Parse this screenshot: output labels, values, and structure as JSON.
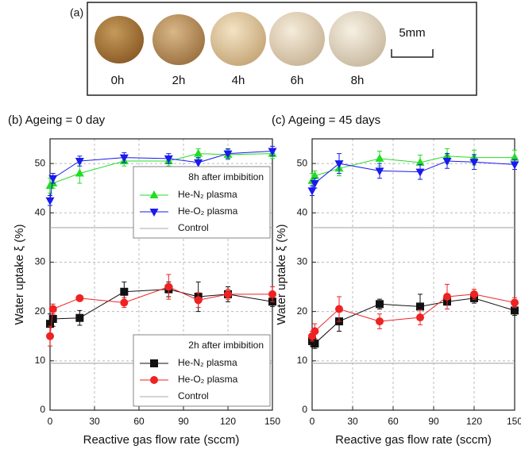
{
  "panel_a": {
    "label": "(a)",
    "times": [
      "0h",
      "2h",
      "4h",
      "6h",
      "8h"
    ],
    "scale_bar": "5mm"
  },
  "chart_data": [
    {
      "type": "line",
      "title": "(b) Ageing = 0 day",
      "xlabel": "Reactive gas flow rate (sccm)",
      "ylabel": "Water uptake ξ (%)",
      "x": [
        0,
        2,
        20,
        50,
        80,
        100,
        120,
        150
      ],
      "xlim": [
        0,
        150
      ],
      "xticks": [
        0,
        30,
        60,
        90,
        120,
        150
      ],
      "ylim": [
        0,
        55
      ],
      "yticks": [
        0,
        10,
        20,
        30,
        40,
        50
      ],
      "grid": true,
      "groups": [
        {
          "legend_title": "8h after imbibition",
          "series": [
            {
              "name": "He-N₂ plasma",
              "color": "#22dd22",
              "marker": "triangle-up",
              "values": [
                45.5,
                46,
                48,
                50.5,
                50.5,
                52,
                51.8,
                52
              ],
              "errors": [
                1.5,
                1,
                2,
                1,
                1,
                1,
                1,
                1
              ]
            },
            {
              "name": "He-O₂ plasma",
              "color": "#1a1aee",
              "marker": "triangle-down",
              "values": [
                42.5,
                47,
                50.5,
                51.2,
                51,
                50.2,
                52,
                52.5
              ],
              "errors": [
                1,
                1,
                1,
                1,
                1,
                1,
                1,
                1
              ]
            }
          ],
          "control": {
            "name": "Control",
            "value": 37,
            "color": "#aaaaaa"
          }
        },
        {
          "legend_title": "2h after imbibition",
          "series": [
            {
              "name": "He-N₂ plasma",
              "color": "#111111",
              "marker": "square",
              "values": [
                17.5,
                18.5,
                18.7,
                24,
                24.5,
                23,
                23.5,
                22
              ],
              "errors": [
                2,
                1.5,
                1.5,
                2,
                1.5,
                3,
                1.5,
                1
              ]
            },
            {
              "name": "He-O₂ plasma",
              "color": "#ee2222",
              "marker": "circle",
              "values": [
                15,
                20.5,
                22.7,
                21.8,
                25,
                22.3,
                23.5,
                23.5
              ],
              "errors": [
                2,
                1,
                0.5,
                1,
                2.5,
                1.5,
                1,
                1.5
              ]
            }
          ],
          "control": {
            "name": "Control",
            "value": 9.5,
            "color": "#aaaaaa"
          }
        }
      ]
    },
    {
      "type": "line",
      "title": "(c) Ageing = 45 days",
      "xlabel": "Reactive gas flow rate (sccm)",
      "ylabel": "Water uptake ξ (%)",
      "x": [
        0,
        2,
        20,
        50,
        80,
        100,
        120,
        150
      ],
      "xlim": [
        0,
        150
      ],
      "xticks": [
        0,
        30,
        60,
        90,
        120,
        150
      ],
      "ylim": [
        0,
        55
      ],
      "yticks": [
        0,
        10,
        20,
        30,
        40,
        50
      ],
      "grid": true,
      "groups": [
        {
          "series": [
            {
              "color": "#22dd22",
              "marker": "triangle-up",
              "values": [
                46.5,
                47.5,
                49,
                51,
                50.2,
                51.5,
                51.2,
                51.2
              ],
              "errors": [
                1.5,
                1,
                1.5,
                1.5,
                1.5,
                1.5,
                1.5,
                1.5
              ]
            },
            {
              "color": "#1a1aee",
              "marker": "triangle-down",
              "values": [
                44.5,
                46,
                50,
                48.5,
                48.3,
                50.5,
                50.3,
                49.8
              ],
              "errors": [
                1,
                1,
                2,
                1.5,
                1.5,
                1.5,
                1.5,
                1
              ]
            }
          ],
          "control": {
            "value": 37,
            "color": "#aaaaaa"
          }
        },
        {
          "series": [
            {
              "color": "#111111",
              "marker": "square",
              "values": [
                14,
                13.5,
                18,
                21.5,
                21,
                22,
                22.7,
                20.2
              ],
              "errors": [
                1,
                1,
                2,
                1,
                2.5,
                1.5,
                1,
                1
              ]
            },
            {
              "color": "#ee2222",
              "marker": "circle",
              "values": [
                15,
                16,
                20.5,
                18,
                18.8,
                23,
                23.5,
                21.8
              ],
              "errors": [
                1,
                1.5,
                2.5,
                1.5,
                1.5,
                2.5,
                1,
                1
              ]
            }
          ],
          "control": {
            "value": 9.5,
            "color": "#aaaaaa"
          }
        }
      ]
    }
  ]
}
